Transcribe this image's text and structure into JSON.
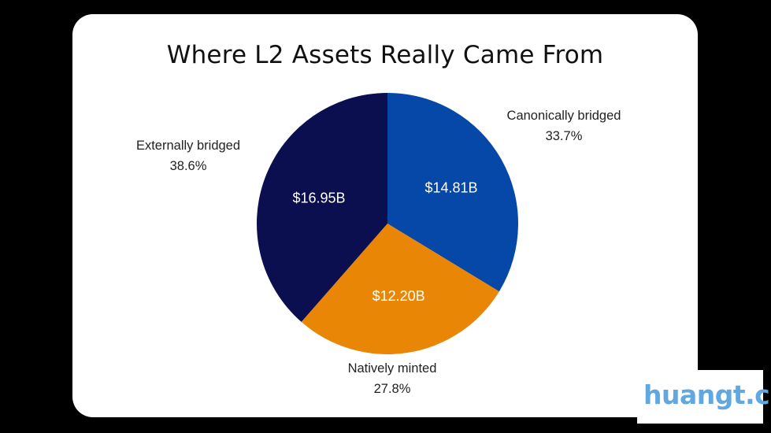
{
  "chart_data": {
    "type": "pie",
    "title": "Where L2 Assets Really Came From",
    "slices": [
      {
        "name": "Canonically bridged",
        "value": 14.81,
        "value_label": "$14.81B",
        "percent_label": "33.7%",
        "color": "#0548a8"
      },
      {
        "name": "Natively minted",
        "value": 12.2,
        "value_label": "$12.20B",
        "percent_label": "27.8%",
        "color": "#ea8606"
      },
      {
        "name": "Externally bridged",
        "value": 16.95,
        "value_label": "$16.95B",
        "percent_label": "38.6%",
        "color": "#0c0f4f"
      }
    ],
    "start": "12 o'clock",
    "direction": "clockwise"
  },
  "watermark": {
    "text": "huangt.cn",
    "color": "#62a8e0"
  }
}
